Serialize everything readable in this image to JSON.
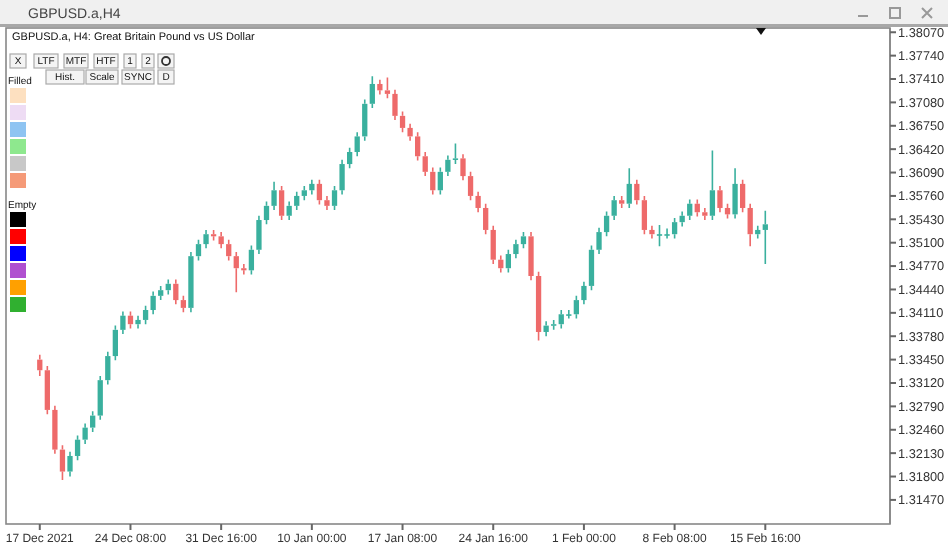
{
  "chart_data": {
    "type": "candlestick",
    "title": "GBPUSD.a, H4:  Great Britain Pound vs US Dollar",
    "subtitle": "GBPUSD.a,H4",
    "annotations": [
      "X",
      "LTF",
      "MTF",
      "HTF",
      "1",
      "2",
      "Hist.",
      "Scale",
      "SYNC",
      "D",
      "Filled",
      "Empty"
    ],
    "categories": [
      "17 Dec 2021",
      null,
      null,
      null,
      null,
      null,
      null,
      null,
      null,
      null,
      null,
      null,
      "24 Dec 08:00",
      null,
      null,
      null,
      null,
      null,
      null,
      null,
      null,
      null,
      null,
      null,
      "31 Dec 16:00",
      null,
      null,
      null,
      null,
      null,
      null,
      null,
      null,
      null,
      null,
      null,
      "10 Jan 00:00",
      null,
      null,
      null,
      null,
      null,
      null,
      null,
      null,
      null,
      null,
      null,
      "17 Jan 08:00",
      null,
      null,
      null,
      null,
      null,
      null,
      null,
      null,
      null,
      null,
      null,
      "24 Jan 16:00",
      null,
      null,
      null,
      null,
      null,
      null,
      null,
      null,
      null,
      null,
      null,
      "1 Feb 00:00",
      null,
      null,
      null,
      null,
      null,
      null,
      null,
      null,
      null,
      null,
      null,
      "8 Feb 08:00",
      null,
      null,
      null,
      null,
      null,
      null,
      null,
      null,
      null,
      null,
      null,
      "15 Feb 16:00",
      null,
      null,
      null,
      null,
      null,
      null,
      null,
      null,
      null,
      null,
      null,
      null,
      null,
      null,
      null,
      null
    ],
    "ylim": [
      1.3113,
      1.3813
    ],
    "yticks": [
      {
        "value": 1.3147,
        "label": "1.31470"
      },
      {
        "value": 1.318,
        "label": "1.31800"
      },
      {
        "value": 1.3213,
        "label": "1.32130"
      },
      {
        "value": 1.3246,
        "label": "1.32460"
      },
      {
        "value": 1.3279,
        "label": "1.32790"
      },
      {
        "value": 1.3312,
        "label": "1.33120"
      },
      {
        "value": 1.3345,
        "label": "1.33450"
      },
      {
        "value": 1.3378,
        "label": "1.33780"
      },
      {
        "value": 1.3411,
        "label": "1.34110"
      },
      {
        "value": 1.3444,
        "label": "1.34440"
      },
      {
        "value": 1.3477,
        "label": "1.34770"
      },
      {
        "value": 1.351,
        "label": "1.35100"
      },
      {
        "value": 1.3543,
        "label": "1.35430"
      },
      {
        "value": 1.3576,
        "label": "1.35760"
      },
      {
        "value": 1.3609,
        "label": "1.36090"
      },
      {
        "value": 1.3642,
        "label": "1.36420"
      },
      {
        "value": 1.3675,
        "label": "1.36750"
      },
      {
        "value": 1.3708,
        "label": "1.37080"
      },
      {
        "value": 1.3741,
        "label": "1.37410"
      },
      {
        "value": 1.3774,
        "label": "1.37740"
      },
      {
        "value": 1.3807,
        "label": "1.38070"
      }
    ],
    "ohlc": [
      [
        1.3345,
        1.3352,
        1.3322,
        1.333
      ],
      [
        1.333,
        1.3336,
        1.3268,
        1.3274
      ],
      [
        1.3274,
        1.328,
        1.3212,
        1.3218
      ],
      [
        1.3218,
        1.3224,
        1.3175,
        1.3187
      ],
      [
        1.3187,
        1.3215,
        1.318,
        1.3209
      ],
      [
        1.3209,
        1.3238,
        1.3203,
        1.3232
      ],
      [
        1.3232,
        1.3255,
        1.3226,
        1.3249
      ],
      [
        1.3249,
        1.3272,
        1.3243,
        1.3266
      ],
      [
        1.3266,
        1.3322,
        1.326,
        1.3316
      ],
      [
        1.3316,
        1.3356,
        1.331,
        1.335
      ],
      [
        1.335,
        1.3393,
        1.3344,
        1.3387
      ],
      [
        1.3387,
        1.3413,
        1.3381,
        1.3407
      ],
      [
        1.3407,
        1.3413,
        1.3389,
        1.3395
      ],
      [
        1.3395,
        1.3407,
        1.3389,
        1.3401
      ],
      [
        1.3401,
        1.3421,
        1.3395,
        1.3415
      ],
      [
        1.3415,
        1.3441,
        1.3409,
        1.3435
      ],
      [
        1.3435,
        1.3449,
        1.3429,
        1.3443
      ],
      [
        1.3443,
        1.3458,
        1.3437,
        1.3452
      ],
      [
        1.3452,
        1.3458,
        1.3423,
        1.3429
      ],
      [
        1.3429,
        1.3435,
        1.3412,
        1.3418
      ],
      [
        1.3418,
        1.3497,
        1.3412,
        1.3491
      ],
      [
        1.3491,
        1.3514,
        1.3485,
        1.3508
      ],
      [
        1.3508,
        1.3528,
        1.3502,
        1.3522
      ],
      [
        1.3522,
        1.3528,
        1.3513,
        1.3519
      ],
      [
        1.3519,
        1.3525,
        1.3502,
        1.3508
      ],
      [
        1.3508,
        1.3514,
        1.3485,
        1.3491
      ],
      [
        1.3491,
        1.3497,
        1.344,
        1.3474
      ],
      [
        1.3474,
        1.348,
        1.3465,
        1.3471
      ],
      [
        1.3471,
        1.3506,
        1.3465,
        1.35
      ],
      [
        1.35,
        1.3548,
        1.3494,
        1.3542
      ],
      [
        1.3542,
        1.3568,
        1.3536,
        1.3562
      ],
      [
        1.3562,
        1.3596,
        1.3556,
        1.3584
      ],
      [
        1.3584,
        1.359,
        1.3542,
        1.3548
      ],
      [
        1.3548,
        1.3568,
        1.3542,
        1.3562
      ],
      [
        1.3562,
        1.3582,
        1.3556,
        1.3576
      ],
      [
        1.3576,
        1.359,
        1.357,
        1.3584
      ],
      [
        1.3584,
        1.3599,
        1.3578,
        1.3593
      ],
      [
        1.3593,
        1.3599,
        1.3564,
        1.357
      ],
      [
        1.357,
        1.3576,
        1.3556,
        1.3562
      ],
      [
        1.3562,
        1.359,
        1.3556,
        1.3584
      ],
      [
        1.3584,
        1.3627,
        1.3578,
        1.3621
      ],
      [
        1.3621,
        1.3644,
        1.3615,
        1.3638
      ],
      [
        1.3638,
        1.3666,
        1.3632,
        1.366
      ],
      [
        1.366,
        1.3712,
        1.3654,
        1.3706
      ],
      [
        1.3706,
        1.3745,
        1.37,
        1.3734
      ],
      [
        1.3734,
        1.374,
        1.3719,
        1.3725
      ],
      [
        1.3725,
        1.3743,
        1.3714,
        1.372
      ],
      [
        1.372,
        1.3726,
        1.3683,
        1.3689
      ],
      [
        1.3689,
        1.3695,
        1.3666,
        1.3672
      ],
      [
        1.3672,
        1.3678,
        1.3654,
        1.366
      ],
      [
        1.366,
        1.3666,
        1.3626,
        1.3632
      ],
      [
        1.3632,
        1.3638,
        1.3604,
        1.361
      ],
      [
        1.361,
        1.3616,
        1.3578,
        1.3584
      ],
      [
        1.3584,
        1.3616,
        1.3578,
        1.361
      ],
      [
        1.361,
        1.3633,
        1.3604,
        1.3627
      ],
      [
        1.3627,
        1.365,
        1.3621,
        1.3629
      ],
      [
        1.3629,
        1.3635,
        1.3598,
        1.3604
      ],
      [
        1.3604,
        1.361,
        1.357,
        1.3576
      ],
      [
        1.3576,
        1.3582,
        1.3553,
        1.3559
      ],
      [
        1.3559,
        1.3565,
        1.3522,
        1.3528
      ],
      [
        1.3528,
        1.3534,
        1.348,
        1.3486
      ],
      [
        1.3486,
        1.3492,
        1.3468,
        1.3474
      ],
      [
        1.3474,
        1.35,
        1.3468,
        1.3494
      ],
      [
        1.3494,
        1.3514,
        1.3488,
        1.3508
      ],
      [
        1.3508,
        1.3525,
        1.3502,
        1.3519
      ],
      [
        1.3519,
        1.3525,
        1.3457,
        1.3463
      ],
      [
        1.3463,
        1.3469,
        1.3372,
        1.3384
      ],
      [
        1.3384,
        1.3399,
        1.3378,
        1.3393
      ],
      [
        1.3393,
        1.3401,
        1.3387,
        1.3395
      ],
      [
        1.3395,
        1.3415,
        1.3389,
        1.3409
      ],
      [
        1.3409,
        1.3415,
        1.3403,
        1.3409
      ],
      [
        1.3409,
        1.3435,
        1.3403,
        1.3429
      ],
      [
        1.3429,
        1.3455,
        1.3423,
        1.3449
      ],
      [
        1.3449,
        1.3506,
        1.3443,
        1.35
      ],
      [
        1.35,
        1.3531,
        1.3494,
        1.3525
      ],
      [
        1.3525,
        1.3554,
        1.3519,
        1.3548
      ],
      [
        1.3548,
        1.3576,
        1.3542,
        1.357
      ],
      [
        1.357,
        1.3576,
        1.3559,
        1.3565
      ],
      [
        1.3565,
        1.3615,
        1.3559,
        1.3593
      ],
      [
        1.3593,
        1.3599,
        1.3564,
        1.357
      ],
      [
        1.357,
        1.3576,
        1.3522,
        1.3528
      ],
      [
        1.3528,
        1.3534,
        1.3516,
        1.3522
      ],
      [
        1.3522,
        1.3535,
        1.3505,
        1.3522
      ],
      [
        1.3522,
        1.353,
        1.3516,
        1.3522
      ],
      [
        1.3522,
        1.3545,
        1.3516,
        1.3539
      ],
      [
        1.3539,
        1.3554,
        1.3533,
        1.3548
      ],
      [
        1.3548,
        1.3571,
        1.3542,
        1.3565
      ],
      [
        1.3565,
        1.3571,
        1.3547,
        1.3553
      ],
      [
        1.3553,
        1.3559,
        1.3542,
        1.3548
      ],
      [
        1.3548,
        1.364,
        1.3542,
        1.3584
      ],
      [
        1.3584,
        1.359,
        1.3553,
        1.3559
      ],
      [
        1.3559,
        1.3565,
        1.3544,
        1.355
      ],
      [
        1.355,
        1.3615,
        1.3544,
        1.3593
      ],
      [
        1.3593,
        1.3599,
        1.3553,
        1.3559
      ],
      [
        1.3559,
        1.3565,
        1.3505,
        1.3522
      ],
      [
        1.3522,
        1.3534,
        1.3516,
        1.3528
      ],
      [
        1.3528,
        1.3555,
        1.348,
        1.3536
      ],
      null,
      null,
      null,
      null,
      null,
      null,
      null,
      null,
      null,
      null,
      null,
      null,
      null,
      null,
      null,
      null
    ],
    "colors": [
      "#ee6a6a",
      "#ee6a6a",
      "#ee6a6a",
      "#ee6a6a",
      "#3ab09e",
      "#3ab09e",
      "#3ab09e",
      "#3ab09e",
      "#3ab09e",
      "#3ab09e",
      "#3ab09e",
      "#3ab09e",
      "#ee6a6a",
      "#3ab09e",
      "#3ab09e",
      "#3ab09e",
      "#3ab09e",
      "#3ab09e",
      "#ee6a6a",
      "#ee6a6a",
      "#3ab09e",
      "#3ab09e",
      "#3ab09e",
      "#ee6a6a",
      "#ee6a6a",
      "#ee6a6a",
      "#ee6a6a",
      "#ee6a6a",
      "#3ab09e",
      "#3ab09e",
      "#3ab09e",
      "#3ab09e",
      "#ee6a6a",
      "#3ab09e",
      "#3ab09e",
      "#3ab09e",
      "#3ab09e",
      "#ee6a6a",
      "#ee6a6a",
      "#3ab09e",
      "#3ab09e",
      "#3ab09e",
      "#3ab09e",
      "#3ab09e",
      "#3ab09e",
      "#ee6a6a",
      "#ee6a6a",
      "#ee6a6a",
      "#ee6a6a",
      "#ee6a6a",
      "#ee6a6a",
      "#ee6a6a",
      "#ee6a6a",
      "#3ab09e",
      "#3ab09e",
      "#3ab09e",
      "#ee6a6a",
      "#ee6a6a",
      "#ee6a6a",
      "#ee6a6a",
      "#ee6a6a",
      "#ee6a6a",
      "#3ab09e",
      "#3ab09e",
      "#3ab09e",
      "#ee6a6a",
      "#ee6a6a",
      "#3ab09e",
      "#3ab09e",
      "#3ab09e",
      "#3ab09e",
      "#3ab09e",
      "#3ab09e",
      "#3ab09e",
      "#3ab09e",
      "#3ab09e",
      "#3ab09e",
      "#ee6a6a",
      "#3ab09e",
      "#ee6a6a",
      "#ee6a6a",
      "#ee6a6a",
      "#3ab09e",
      "#3ab09e",
      "#3ab09e",
      "#3ab09e",
      "#3ab09e",
      "#ee6a6a",
      "#ee6a6a",
      "#3ab09e",
      "#ee6a6a",
      "#ee6a6a",
      "#3ab09e",
      "#ee6a6a",
      "#ee6a6a",
      "#3ab09e",
      "#3ab09e",
      null,
      null,
      null,
      null,
      null,
      null,
      null,
      null,
      null,
      null,
      null,
      null,
      null,
      null,
      null,
      null
    ]
  }
}
